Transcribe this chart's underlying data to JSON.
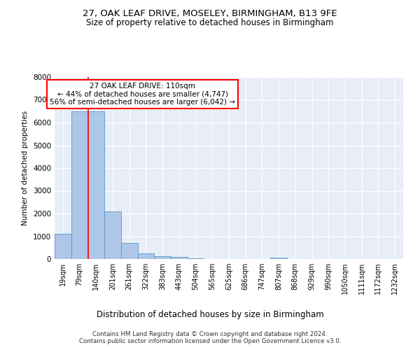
{
  "title1": "27, OAK LEAF DRIVE, MOSELEY, BIRMINGHAM, B13 9FE",
  "title2": "Size of property relative to detached houses in Birmingham",
  "xlabel": "Distribution of detached houses by size in Birmingham",
  "ylabel": "Number of detached properties",
  "footnote1": "Contains HM Land Registry data © Crown copyright and database right 2024.",
  "footnote2": "Contains public sector information licensed under the Open Government Licence v3.0.",
  "annotation_line1": "27 OAK LEAF DRIVE: 110sqm",
  "annotation_line2": "← 44% of detached houses are smaller (4,747)",
  "annotation_line3": "56% of semi-detached houses are larger (6,042) →",
  "bar_labels": [
    "19sqm",
    "79sqm",
    "140sqm",
    "201sqm",
    "261sqm",
    "322sqm",
    "383sqm",
    "443sqm",
    "504sqm",
    "565sqm",
    "625sqm",
    "686sqm",
    "747sqm",
    "807sqm",
    "868sqm",
    "929sqm",
    "990sqm",
    "1050sqm",
    "1111sqm",
    "1172sqm",
    "1232sqm"
  ],
  "bar_values": [
    1100,
    6500,
    6500,
    2100,
    700,
    250,
    130,
    100,
    30,
    5,
    2,
    2,
    2,
    60,
    2,
    2,
    2,
    2,
    2,
    2,
    0
  ],
  "bar_color": "#aec6e8",
  "bar_edge_color": "#5a96c8",
  "background_color": "#e8eef8",
  "grid_color": "#ffffff",
  "ylim": [
    0,
    8000
  ],
  "yticks": [
    0,
    1000,
    2000,
    3000,
    4000,
    5000,
    6000,
    7000,
    8000
  ]
}
